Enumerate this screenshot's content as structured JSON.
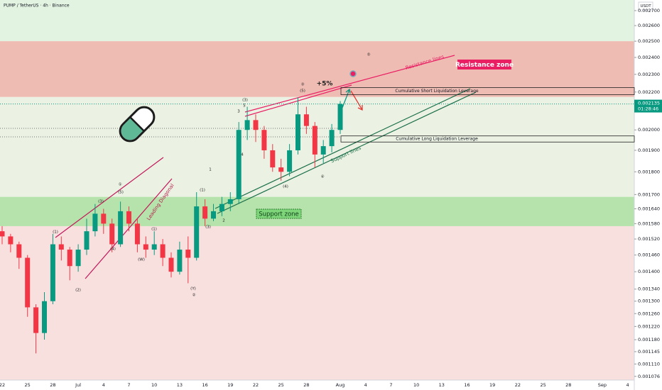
{
  "header": {
    "symbol": "PUMP / TetherUS · 4h · Binance",
    "currency": "USDT"
  },
  "chart_data": {
    "type": "candlestick",
    "categories": [
      "22",
      null,
      null,
      "25",
      null,
      null,
      "28",
      null,
      null,
      "Jul",
      null,
      null,
      "4",
      null,
      null,
      "7",
      null,
      null,
      "10",
      null,
      null,
      "13",
      null,
      null,
      "16",
      null,
      null,
      "19",
      null,
      null,
      "22",
      null,
      null,
      "25",
      null,
      null,
      "28",
      null,
      null,
      null,
      "Aug",
      null,
      null,
      "4",
      null,
      null,
      "7",
      null,
      null,
      "10",
      null,
      null,
      "13",
      null,
      null,
      "16",
      null,
      null,
      "19",
      null,
      null,
      "22",
      null,
      null,
      "25",
      null,
      null,
      "28",
      null,
      null,
      null,
      "Sep",
      null,
      null,
      "4"
    ],
    "open": [
      0.00155,
      0.00153,
      0.0015,
      0.00145,
      0.00128,
      0.0012,
      0.0013,
      0.0015,
      0.00148,
      0.00142,
      0.00148,
      0.00155,
      0.00162,
      0.00158,
      0.0015,
      0.00163,
      0.00158,
      0.0015,
      0.00148,
      0.0015,
      0.00145,
      0.0014,
      0.00148,
      0.00145,
      0.00165,
      0.0016,
      0.00163,
      0.00166,
      0.00168,
      0.002,
      0.00205,
      0.002,
      0.0019,
      0.00182,
      0.0018,
      0.0019,
      0.00208,
      0.00202,
      0.00188,
      0.00192,
      0.002,
      null,
      null,
      null,
      null,
      null,
      null,
      null,
      null,
      null,
      null,
      null,
      null,
      null,
      null,
      null,
      null,
      null,
      null,
      null,
      null,
      null,
      null,
      null,
      null,
      null,
      null,
      null,
      null,
      null,
      null,
      null,
      null,
      null,
      null
    ],
    "high": [
      0.00157,
      0.00154,
      0.00151,
      0.00146,
      0.00129,
      0.00133,
      0.00154,
      0.00153,
      0.00149,
      0.0015,
      0.0016,
      0.00166,
      0.00164,
      0.0016,
      0.00167,
      0.00165,
      0.0016,
      0.00153,
      0.00155,
      0.00152,
      0.00147,
      0.00151,
      0.00153,
      0.00171,
      0.00168,
      0.00166,
      0.00169,
      0.00171,
      0.00204,
      0.00212,
      0.00208,
      0.00202,
      0.00193,
      0.00186,
      0.00193,
      0.00217,
      0.00212,
      0.00204,
      0.00195,
      0.00203,
      0.00215,
      null,
      null,
      null,
      null,
      null,
      null,
      null,
      null,
      null,
      null,
      null,
      null,
      null,
      null,
      null,
      null,
      null,
      null,
      null,
      null,
      null,
      null,
      null,
      null,
      null,
      null,
      null,
      null,
      null,
      null,
      null,
      null,
      null,
      null
    ],
    "low": [
      0.0015,
      0.00147,
      0.00141,
      0.00125,
      0.00114,
      0.00118,
      0.00129,
      0.00144,
      0.00137,
      0.0014,
      0.00146,
      0.00153,
      0.00154,
      0.00147,
      0.00149,
      0.00155,
      0.00147,
      0.00145,
      0.00146,
      0.00142,
      0.00138,
      0.00139,
      0.00136,
      0.00144,
      0.00157,
      0.00159,
      0.00161,
      0.00163,
      0.00166,
      0.00195,
      0.00194,
      0.00186,
      0.0018,
      0.00176,
      0.00178,
      0.00188,
      0.00198,
      0.00182,
      0.00184,
      0.00189,
      0.00198,
      null,
      null,
      null,
      null,
      null,
      null,
      null,
      null,
      null,
      null,
      null,
      null,
      null,
      null,
      null,
      null,
      null,
      null,
      null,
      null,
      null,
      null,
      null,
      null,
      null,
      null,
      null,
      null,
      null,
      null,
      null,
      null,
      null,
      null
    ],
    "close": [
      0.00153,
      0.0015,
      0.00145,
      0.00128,
      0.0012,
      0.0013,
      0.0015,
      0.00148,
      0.00142,
      0.00148,
      0.00155,
      0.00162,
      0.00158,
      0.0015,
      0.00163,
      0.00158,
      0.0015,
      0.00148,
      0.0015,
      0.00145,
      0.0014,
      0.00148,
      0.00145,
      0.00165,
      0.0016,
      0.00163,
      0.00166,
      0.00168,
      0.002,
      0.00205,
      0.002,
      0.0019,
      0.00182,
      0.0018,
      0.0019,
      0.00208,
      0.00202,
      0.00188,
      0.00192,
      0.002,
      0.002135,
      null,
      null,
      null,
      null,
      null,
      null,
      null,
      null,
      null,
      null,
      null,
      null,
      null,
      null,
      null,
      null,
      null,
      null,
      null,
      null,
      null,
      null,
      null,
      null,
      null,
      null,
      null,
      null,
      null,
      null,
      null,
      null,
      null,
      null
    ],
    "up_color": "#089981",
    "down_color": "#f23645",
    "log_scale": true,
    "ylim": [
      0.001066,
      0.002773
    ],
    "yticks": [
      {
        "value": 0.0027,
        "label": "0.002700"
      },
      {
        "value": 0.0026,
        "label": "0.002600"
      },
      {
        "value": 0.0025,
        "label": "0.002500"
      },
      {
        "value": 0.0024,
        "label": "0.002400"
      },
      {
        "value": 0.0023,
        "label": "0.002300"
      },
      {
        "value": 0.0022,
        "label": "0.002200"
      },
      {
        "value": 0.002,
        "label": "0.002000"
      },
      {
        "value": 0.0019,
        "label": "0.001900"
      },
      {
        "value": 0.0018,
        "label": "0.001800"
      },
      {
        "value": 0.0017,
        "label": "0.001700"
      },
      {
        "value": 0.00164,
        "label": "0.001640"
      },
      {
        "value": 0.00158,
        "label": "0.001580"
      },
      {
        "value": 0.00152,
        "label": "0.001520"
      },
      {
        "value": 0.00146,
        "label": "0.001460"
      },
      {
        "value": 0.0014,
        "label": "0.001400"
      },
      {
        "value": 0.00134,
        "label": "0.001340"
      },
      {
        "value": 0.0013,
        "label": "0.001300"
      },
      {
        "value": 0.00126,
        "label": "0.001260"
      },
      {
        "value": 0.00122,
        "label": "0.001220"
      },
      {
        "value": 0.00118,
        "label": "0.001180"
      },
      {
        "value": 0.001145,
        "label": "0.001145"
      },
      {
        "value": 0.00111,
        "label": "0.001110"
      },
      {
        "value": 0.001076,
        "label": "0.001076"
      }
    ],
    "last_price": 0.002135,
    "countdown": "01:28:46",
    "zones": [
      {
        "name": "Resistance zone",
        "range": [
          0.002173,
          0.0025
        ],
        "color": "#efbcb3"
      },
      {
        "name": "Support zone",
        "range": [
          0.00157,
          0.00169
        ],
        "color": "#b5e3ab"
      }
    ],
    "levels": [
      {
        "name": "Cumulative Short Liquidation Leverage",
        "range": [
          0.002185,
          0.002225
        ]
      },
      {
        "name": "Cumulative Long Liquidation Leverage",
        "range": [
          0.00194,
          0.00197
        ]
      }
    ],
    "annotations": [
      "Resistance lines",
      "Support lines",
      "Leading Diagonal",
      "+5%",
      "①",
      "(1)",
      "(2)",
      "(3)",
      "(4)",
      "(5)",
      "(1)",
      "(W)",
      "(Y)",
      "②",
      "(1)",
      "(3)",
      "1",
      "2",
      "3",
      "4",
      "5",
      "(3)",
      "(4)",
      "③",
      "(5)",
      "④",
      "⑤"
    ]
  }
}
